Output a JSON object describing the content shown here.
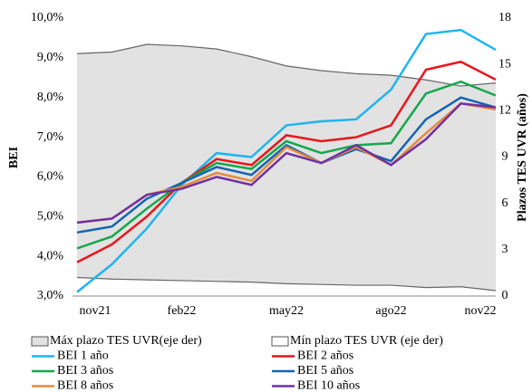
{
  "chart_data": {
    "type": "line",
    "categories": [
      "nov21",
      null,
      null,
      "feb22",
      null,
      null,
      "may22",
      null,
      null,
      "ago22",
      null,
      null,
      "nov22"
    ],
    "ylabel": "BEI",
    "y2label": "Plazos TES UVR (años)",
    "ylim": [
      3,
      10
    ],
    "yticks": [
      {
        "value": 3,
        "label": "3,0%"
      },
      {
        "value": 4,
        "label": "4,0%"
      },
      {
        "value": 5,
        "label": "5,0%"
      },
      {
        "value": 6,
        "label": "6,0%"
      },
      {
        "value": 7,
        "label": "7,0%"
      },
      {
        "value": 8,
        "label": "8,0%"
      },
      {
        "value": 9,
        "label": "9,0%"
      },
      {
        "value": 10,
        "label": "10,0%"
      }
    ],
    "y2lim": [
      0,
      18
    ],
    "y2ticks": [
      0,
      3,
      6,
      9,
      12,
      15,
      18
    ],
    "series": [
      {
        "name": "Máx plazo TES UVR(eje der)",
        "type": "area",
        "axis": "y2",
        "color": "#e2e2e2",
        "values": [
          15.7,
          15.8,
          16.3,
          16.2,
          16.0,
          15.5,
          14.9,
          14.6,
          14.4,
          14.3,
          14.0,
          13.6,
          13.8
        ]
      },
      {
        "name": "Mín plazo TES UVR (eje der)",
        "type": "area",
        "axis": "y2",
        "color": "#ffffff",
        "values": [
          1.2,
          1.1,
          1.05,
          1.0,
          0.95,
          0.9,
          0.8,
          0.75,
          0.7,
          0.7,
          0.55,
          0.6,
          0.35
        ]
      },
      {
        "name": "BEI 1 año",
        "type": "line",
        "color": "#1fb4f0",
        "values": [
          3.1,
          3.8,
          4.7,
          5.8,
          6.6,
          6.5,
          7.3,
          7.4,
          7.45,
          8.2,
          9.6,
          9.7,
          9.2
        ]
      },
      {
        "name": "BEI 2 años",
        "type": "line",
        "color": "#e8161b",
        "values": [
          3.85,
          4.3,
          5.0,
          5.85,
          6.45,
          6.3,
          7.05,
          6.9,
          7.0,
          7.3,
          8.7,
          8.9,
          8.45
        ]
      },
      {
        "name": "BEI 3 años",
        "type": "line",
        "color": "#14a84c",
        "values": [
          4.2,
          4.5,
          5.2,
          5.85,
          6.35,
          6.2,
          6.9,
          6.6,
          6.8,
          6.85,
          8.1,
          8.4,
          8.05
        ]
      },
      {
        "name": "BEI 5 años",
        "type": "line",
        "color": "#1464b4",
        "values": [
          4.6,
          4.75,
          5.45,
          5.85,
          6.25,
          6.05,
          6.8,
          6.35,
          6.7,
          6.4,
          7.45,
          8.0,
          7.75
        ]
      },
      {
        "name": "BEI 8 años",
        "type": "line",
        "color": "#e68a3c",
        "values": [
          4.85,
          4.95,
          5.55,
          5.75,
          6.1,
          5.9,
          6.75,
          6.35,
          6.75,
          6.3,
          7.1,
          7.85,
          7.7
        ]
      },
      {
        "name": "BEI 10 años",
        "type": "line",
        "color": "#7030a0",
        "values": [
          4.85,
          4.95,
          5.55,
          5.7,
          6.0,
          5.8,
          6.6,
          6.35,
          6.8,
          6.3,
          6.95,
          7.85,
          7.75
        ]
      }
    ]
  }
}
